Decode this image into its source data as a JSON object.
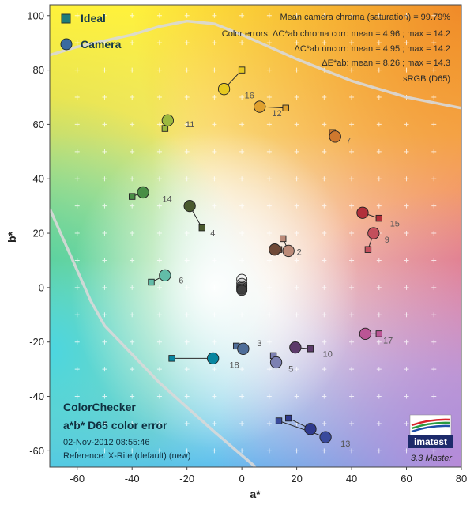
{
  "chart_data": {
    "type": "scatter",
    "xlabel": "a*",
    "ylabel": "b*",
    "xlim": [
      -70,
      80
    ],
    "ylim": [
      -66,
      104
    ],
    "xticks": [
      -60,
      -40,
      -20,
      0,
      20,
      40,
      60,
      80
    ],
    "yticks": [
      -60,
      -40,
      -20,
      0,
      20,
      40,
      60,
      80,
      100
    ],
    "grid": true,
    "legend": {
      "placement": "top-left",
      "entries": [
        {
          "name": "Ideal",
          "marker": "square"
        },
        {
          "name": "Camera",
          "marker": "circle"
        }
      ]
    },
    "info_lines": [
      "Mean camera chroma (saturation) = 99.79%",
      "Color errors: ΔC*ab chroma corr:  mean = 4.96 ;  max = 14.2",
      "ΔC*ab uncorr:  mean = 4.95 ;  max = 14.2",
      "ΔE*ab:  mean = 8.26 ;  max = 14.3",
      "sRGB (D65)"
    ],
    "bottom_left": {
      "title": "ColorChecker",
      "subtitle": "a*b* D65 color error",
      "timestamp": "02-Nov-2012 08:55:46",
      "reference": "Reference: X-Rite (default) (new)"
    },
    "logo_text": "imatest",
    "version_text": "3.3  Master",
    "gamut_boundary": {
      "upper": [
        [
          -70,
          85.5
        ],
        [
          -60,
          88.5
        ],
        [
          -40,
          93
        ],
        [
          -30,
          96
        ],
        [
          -20,
          98
        ],
        [
          -10,
          97
        ],
        [
          0,
          93
        ],
        [
          20,
          84
        ],
        [
          40,
          76
        ],
        [
          60,
          70
        ],
        [
          80,
          66
        ]
      ],
      "lower": [
        [
          -70,
          29
        ],
        [
          -55,
          -5
        ],
        [
          -50,
          -14
        ],
        [
          -30,
          -35
        ],
        [
          -10,
          -53
        ],
        [
          5,
          -66
        ]
      ]
    },
    "patches": [
      {
        "id": "1",
        "ideal": [
          13.5,
          14
        ],
        "camera": [
          12,
          14
        ],
        "color": "#6f4a38"
      },
      {
        "id": "2",
        "ideal": [
          15,
          18
        ],
        "camera": [
          17,
          13.5
        ],
        "color": "#bb8a78"
      },
      {
        "id": "3",
        "ideal": [
          -2,
          -21.5
        ],
        "camera": [
          0.5,
          -22.5
        ],
        "color": "#4f6e99"
      },
      {
        "id": "4",
        "ideal": [
          -14.5,
          22
        ],
        "camera": [
          -19,
          30
        ],
        "color": "#4a5a2e"
      },
      {
        "id": "5",
        "ideal": [
          11.5,
          -25
        ],
        "camera": [
          12.5,
          -27.5
        ],
        "color": "#7c80b2"
      },
      {
        "id": "6",
        "ideal": [
          -33,
          2
        ],
        "camera": [
          -28,
          4.5
        ],
        "color": "#62bca8"
      },
      {
        "id": "7",
        "ideal": [
          33,
          57
        ],
        "camera": [
          34,
          55.5
        ],
        "color": "#d0782e"
      },
      {
        "id": "8",
        "ideal": [
          13.5,
          -49
        ],
        "camera": [
          30.5,
          -55
        ],
        "color": "#394a9c"
      },
      {
        "id": "9",
        "ideal": [
          46,
          14
        ],
        "camera": [
          48,
          20
        ],
        "color": "#c34f5c"
      },
      {
        "id": "10",
        "ideal": [
          25,
          -22.5
        ],
        "camera": [
          19.5,
          -22
        ],
        "color": "#5c3a6a"
      },
      {
        "id": "11",
        "ideal": [
          -28,
          58.5
        ],
        "camera": [
          -27,
          61.5
        ],
        "color": "#9cb93e"
      },
      {
        "id": "12",
        "ideal": [
          16,
          66
        ],
        "camera": [
          6.5,
          66.5
        ],
        "color": "#dfa02e"
      },
      {
        "id": "13",
        "ideal": [
          17,
          -48
        ],
        "camera": [
          25,
          -52
        ],
        "color": "#2f3a8e"
      },
      {
        "id": "14",
        "ideal": [
          -40,
          33.5
        ],
        "camera": [
          -36,
          35
        ],
        "color": "#498f46"
      },
      {
        "id": "15",
        "ideal": [
          50,
          25.5
        ],
        "camera": [
          44,
          27.5
        ],
        "color": "#b1303a"
      },
      {
        "id": "16",
        "ideal": [
          0,
          80
        ],
        "camera": [
          -6.5,
          73
        ],
        "color": "#e7c920"
      },
      {
        "id": "17",
        "ideal": [
          50,
          -17
        ],
        "camera": [
          45,
          -17
        ],
        "color": "#bb5595"
      },
      {
        "id": "18",
        "ideal": [
          -25.5,
          -26
        ],
        "camera": [
          -10.5,
          -26
        ],
        "color": "#0886a0"
      },
      {
        "id": "19",
        "ideal": [
          0,
          3
        ],
        "camera": [
          0,
          3
        ],
        "color": "#f3f3f3"
      },
      {
        "id": "20",
        "ideal": [
          0,
          1.5
        ],
        "camera": [
          0,
          1.5
        ],
        "color": "#c8c8c8"
      },
      {
        "id": "21",
        "ideal": [
          0,
          0.5
        ],
        "camera": [
          0,
          0.5
        ],
        "color": "#a0a0a0"
      },
      {
        "id": "22",
        "ideal": [
          0,
          0
        ],
        "camera": [
          0,
          0
        ],
        "color": "#7a7a7a"
      },
      {
        "id": "23",
        "ideal": [
          0,
          -0.5
        ],
        "camera": [
          0,
          -0.5
        ],
        "color": "#555555"
      },
      {
        "id": "24",
        "ideal": [
          0,
          -1
        ],
        "camera": [
          0,
          -1
        ],
        "color": "#343434"
      }
    ],
    "labels": [
      {
        "text": "1",
        "visible": false
      },
      {
        "text": "2",
        "at": [
          20,
          12
        ]
      },
      {
        "text": "3",
        "at": [
          5.5,
          -21.5
        ]
      },
      {
        "text": "4",
        "at": [
          -11.5,
          19
        ]
      },
      {
        "text": "5",
        "at": [
          17,
          -31
        ]
      },
      {
        "text": "6",
        "at": [
          -23,
          1.5
        ]
      },
      {
        "text": "7",
        "at": [
          38,
          53
        ]
      },
      {
        "text": "8",
        "visible": false
      },
      {
        "text": "9",
        "at": [
          52,
          16.5
        ]
      },
      {
        "text": "10",
        "at": [
          29.5,
          -25.5
        ]
      },
      {
        "text": "11",
        "at": [
          -20.5,
          59
        ]
      },
      {
        "text": "12",
        "at": [
          11,
          63
        ]
      },
      {
        "text": "13",
        "at": [
          36,
          -58.5
        ]
      },
      {
        "text": "14",
        "at": [
          -29,
          31.5
        ]
      },
      {
        "text": "15",
        "at": [
          54,
          22.5
        ]
      },
      {
        "text": "16",
        "at": [
          1,
          69.5
        ]
      },
      {
        "text": "17",
        "at": [
          51.5,
          -20.5
        ]
      },
      {
        "text": "18",
        "at": [
          -4.5,
          -29.5
        ]
      }
    ]
  }
}
